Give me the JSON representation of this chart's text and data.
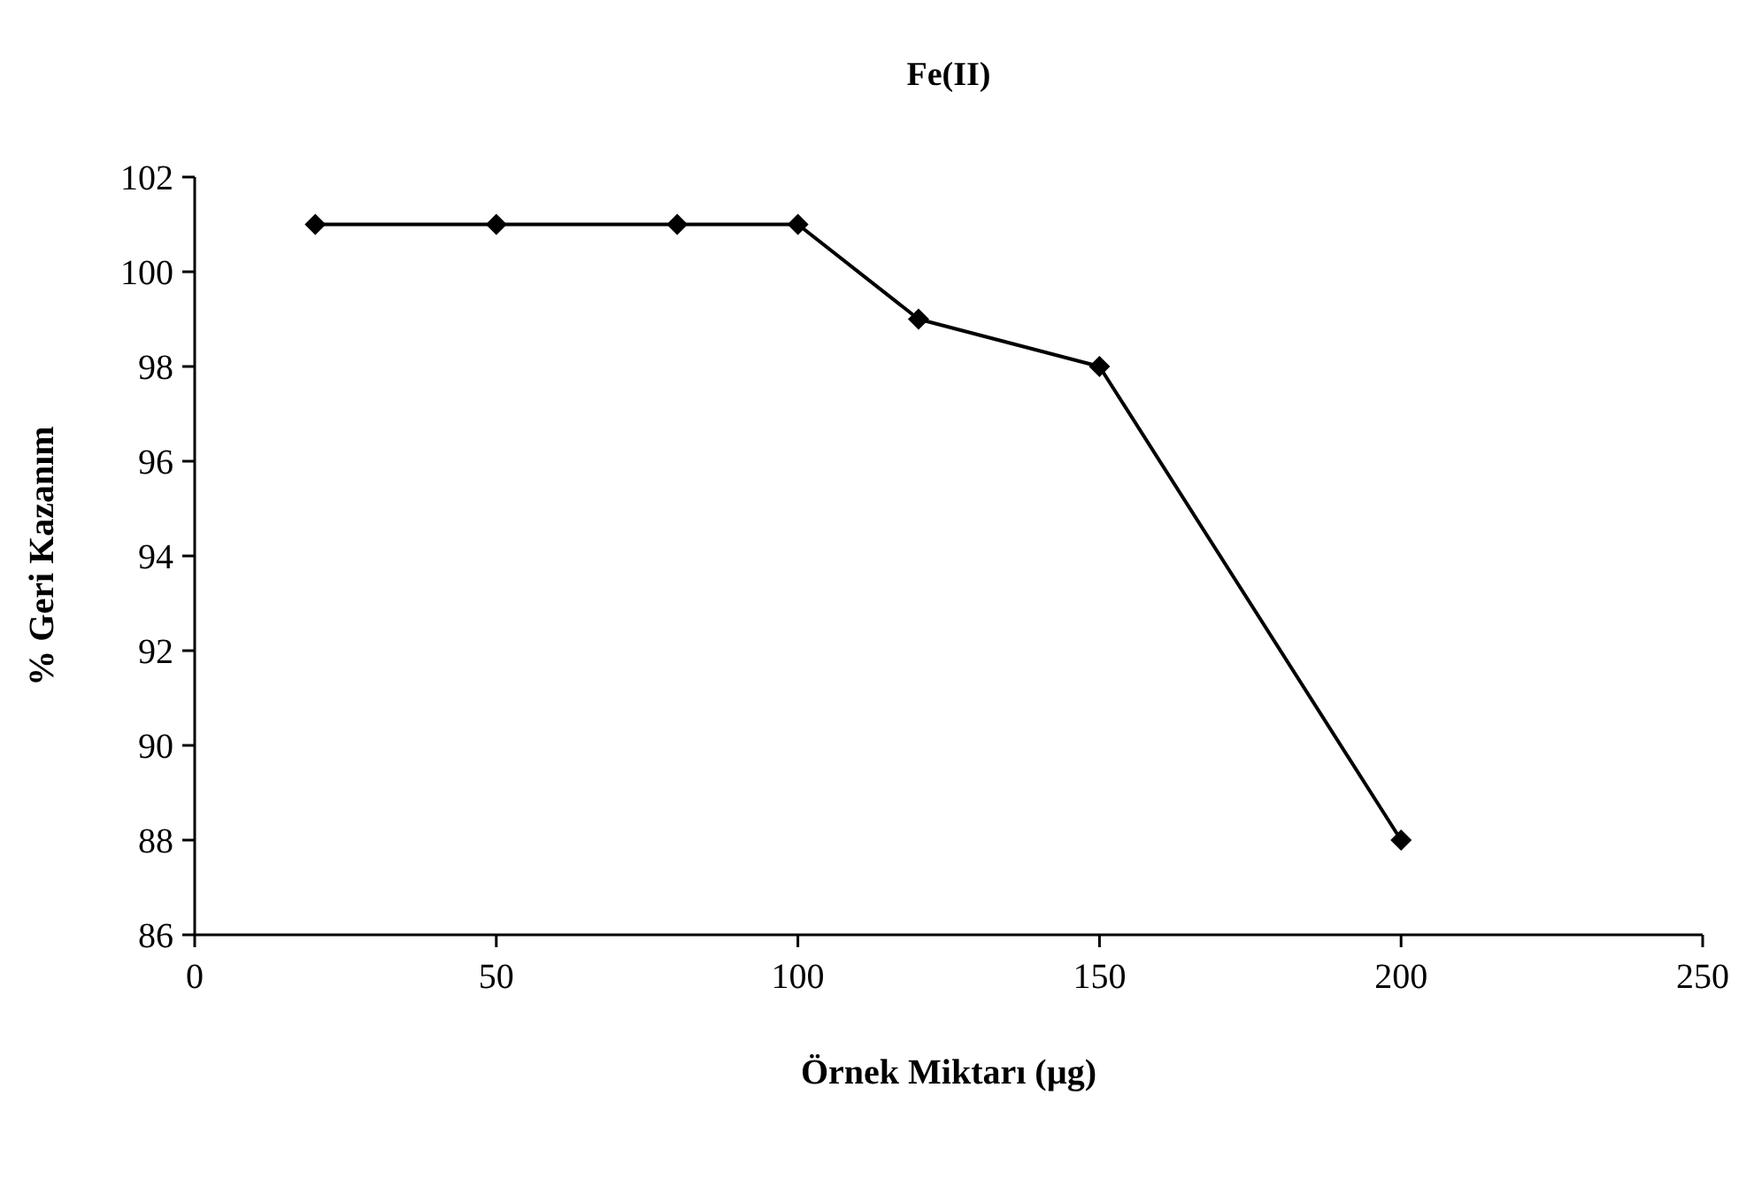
{
  "chart_data": {
    "type": "line",
    "title": "Fe(II)",
    "xlabel": "Örnek Miktarı (µg)",
    "ylabel": "% Geri Kazanım",
    "x": [
      20,
      50,
      80,
      100,
      120,
      150,
      200
    ],
    "series": [
      {
        "color": "#000000",
        "values": [
          101,
          101,
          101,
          101,
          99,
          98,
          88
        ]
      }
    ],
    "xlim": [
      0,
      250
    ],
    "xticks": [
      0,
      50,
      100,
      150,
      200,
      250
    ],
    "ylim": [
      86,
      102
    ],
    "yticks": [
      86,
      88,
      90,
      92,
      94,
      96,
      98,
      100,
      102
    ],
    "grid": false,
    "marker": "diamond",
    "line_style": "solid"
  }
}
